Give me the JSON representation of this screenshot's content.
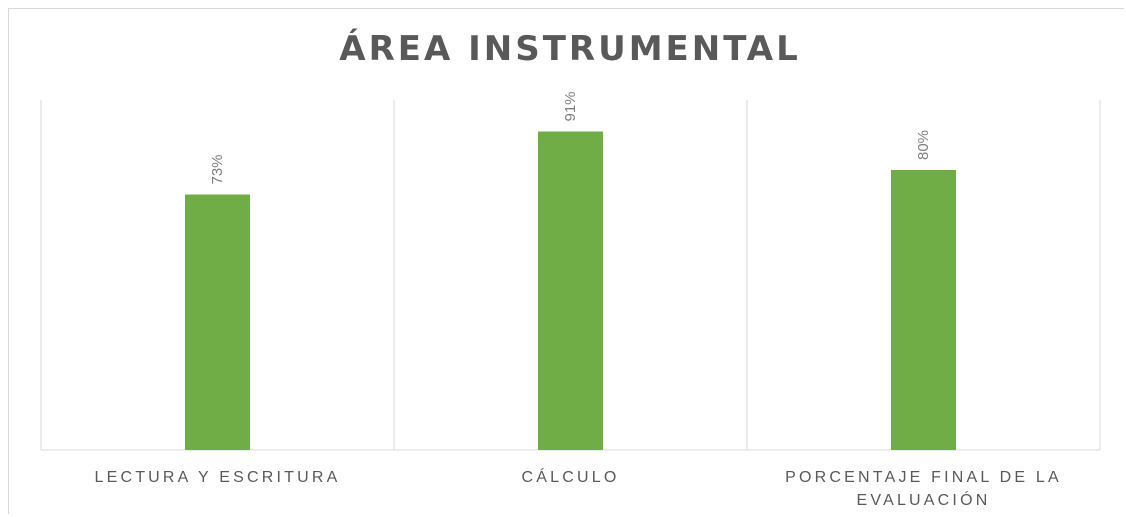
{
  "chart_data": {
    "type": "bar",
    "title": "ÁREA INSTRUMENTAL",
    "categories": [
      [
        "LECTURA Y ESCRITURA"
      ],
      [
        "CÁLCULO"
      ],
      [
        "PORCENTAJE FINAL DE LA",
        "EVALUACIÓN"
      ]
    ],
    "values": [
      73,
      91,
      80
    ],
    "data_labels": [
      "73%",
      "91%",
      "80%"
    ],
    "ylim": [
      0,
      100
    ],
    "xlabel": "",
    "ylabel": "",
    "grid": "vertical separators between categories",
    "legend": "none",
    "colors": {
      "bar": "#70ad47",
      "grid": "#d9d9d9",
      "text": "#595959",
      "data_label": "#7f7f7f"
    }
  }
}
